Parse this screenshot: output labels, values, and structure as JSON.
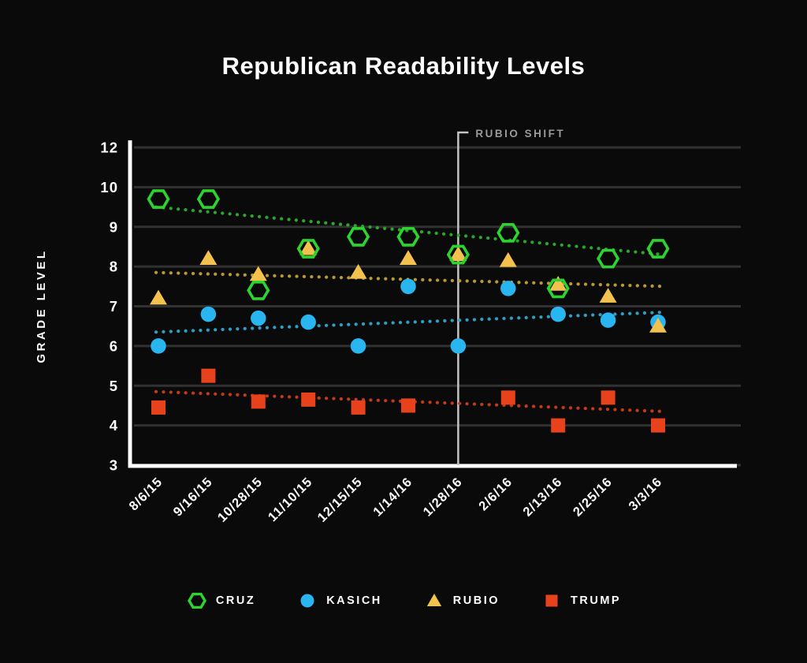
{
  "title": "Republican Readability Levels",
  "chart_data": {
    "type": "scatter",
    "title": "Republican Readability Levels",
    "xlabel": "",
    "ylabel": "GRADE LEVEL",
    "y_ticks": [
      "12",
      "10",
      "9",
      "8",
      "7",
      "6",
      "5",
      "4",
      "3"
    ],
    "grid": true,
    "legend_position": "bottom",
    "categories": [
      "8/6/15",
      "9/16/15",
      "10/28/15",
      "11/10/15",
      "12/15/15",
      "1/14/16",
      "1/28/16",
      "2/6/16",
      "2/13/16",
      "2/25/16",
      "3/3/16"
    ],
    "series": [
      {
        "name": "CRUZ",
        "marker": "hexagon",
        "color": "#2ED42E",
        "trend_color": "#2AA62A",
        "values": [
          9.7,
          9.7,
          7.4,
          8.45,
          8.75,
          8.75,
          8.3,
          8.85,
          7.45,
          8.2,
          8.45
        ],
        "trend_start": 9.5,
        "trend_end": 8.3
      },
      {
        "name": "KASICH",
        "marker": "circle",
        "color": "#29B6F0",
        "trend_color": "#2E9EC7",
        "values": [
          6.0,
          6.8,
          6.7,
          6.6,
          6.0,
          7.5,
          6.0,
          7.45,
          6.8,
          6.65,
          6.6
        ],
        "trend_start": 6.35,
        "trend_end": 6.85
      },
      {
        "name": "RUBIO",
        "marker": "triangle",
        "color": "#F2C14E",
        "trend_color": "#BA9A30",
        "values": [
          7.2,
          8.2,
          7.8,
          8.45,
          7.85,
          8.2,
          8.3,
          8.15,
          7.55,
          7.25,
          6.5
        ],
        "trend_start": 7.85,
        "trend_end": 7.5
      },
      {
        "name": "TRUMP",
        "marker": "square",
        "color": "#E8421C",
        "trend_color": "#C23A18",
        "values": [
          4.45,
          5.25,
          4.6,
          4.65,
          4.45,
          4.5,
          null,
          4.7,
          4.0,
          4.7,
          4.0
        ],
        "trend_start": 4.85,
        "trend_end": 4.35
      }
    ],
    "annotation": {
      "label": "RUBIO SHIFT",
      "category": "1/28/16",
      "category_index": 6
    },
    "ylim_labels": [
      3,
      12
    ],
    "colors": {
      "background": "#0a0a0a",
      "gridline": "#313131",
      "axis": "#ffffff",
      "annotation_line": "#c4c4c4",
      "annotation_text": "#9a9a9a",
      "tick_text": "#ffffff"
    }
  }
}
